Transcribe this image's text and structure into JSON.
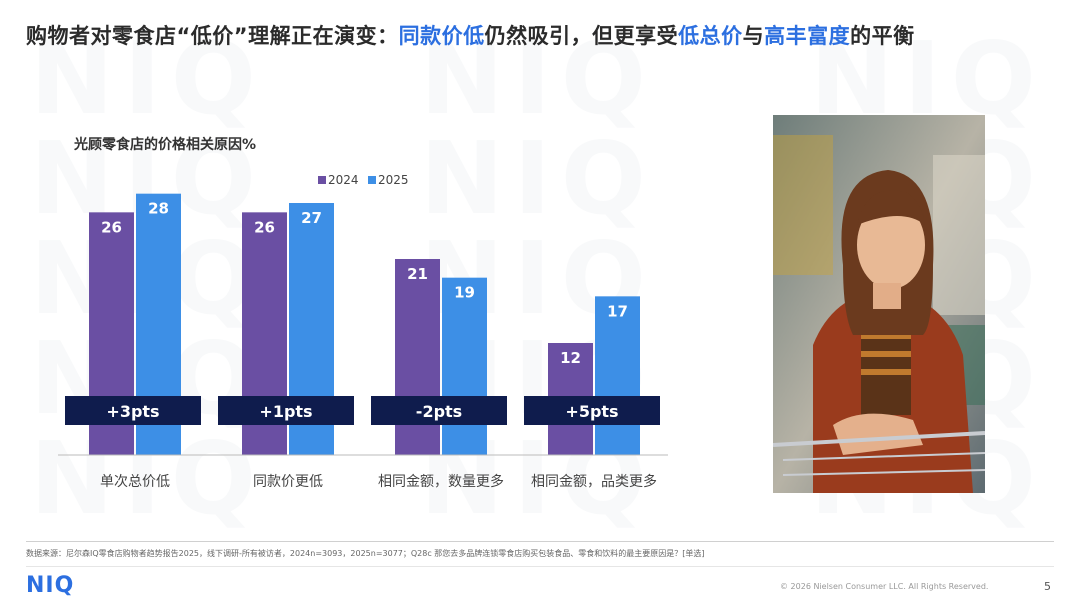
{
  "header": {
    "title_part1": "购物者对零食店“低价”理解正在演变：",
    "title_hl1": "同款价低",
    "title_part2": "仍然吸引，但更享受",
    "title_hl2": "低总价",
    "title_part3": "与",
    "title_hl3": "高丰富度",
    "title_part4": "的平衡"
  },
  "watermark_text": "NIQ",
  "chart_data": {
    "type": "bar",
    "title": "光顾零食店的价格相关原因%",
    "categories": [
      "单次总价低",
      "同款价更低",
      "相同金额，数量更多",
      "相同金额，品类更多"
    ],
    "series": [
      {
        "name": "2024",
        "values": [
          26,
          26,
          21,
          12
        ],
        "color": "#6a4fa3"
      },
      {
        "name": "2025",
        "values": [
          28,
          27,
          19,
          17
        ],
        "color": "#3d8fe6"
      }
    ],
    "delta_labels": [
      "+3pts",
      "+1pts",
      "-2pts",
      "+5pts"
    ],
    "ylim": [
      0,
      30
    ],
    "xlabel": "",
    "ylabel": "",
    "legend": "top-center",
    "grid": false
  },
  "photo": {
    "description_icon": "shopper-photo"
  },
  "footer": {
    "source": "数据来源：尼尔森IQ零食店购物者趋势报告2025，线下调研-所有被访者，2024n=3093，2025n=3077；Q28c 那您去多品牌连锁零食店购买包装食品、零食和饮料的最主要原因是？[单选]",
    "logo": "NIQ",
    "copyright": "© 2026 Nielsen Consumer LLC. All Rights Reserved.",
    "page": "5"
  },
  "colors": {
    "accent": "#2c6fe0",
    "navy": "#0f1c4d",
    "purple": "#6a4fa3",
    "blue": "#3d8fe6"
  }
}
